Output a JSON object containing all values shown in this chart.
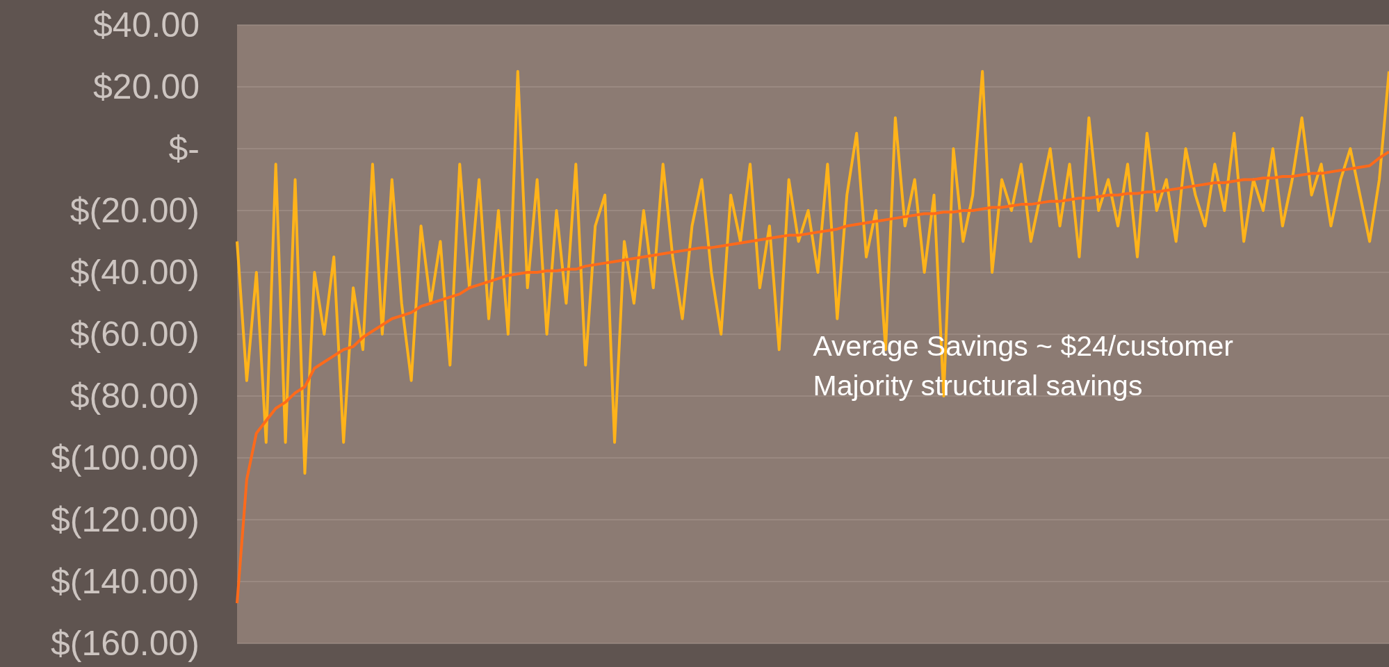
{
  "chart_data": {
    "type": "line",
    "categories": [
      null,
      null,
      null,
      null,
      null,
      null,
      null,
      null,
      null,
      null,
      null,
      null,
      null,
      null,
      null,
      null,
      null,
      null,
      null,
      null,
      null,
      null,
      null,
      null,
      null,
      null,
      null,
      null,
      null,
      null,
      null,
      null,
      null,
      null,
      null,
      null,
      null,
      null,
      null,
      null,
      null,
      null,
      null,
      null,
      null,
      null,
      null,
      null,
      null,
      null,
      null,
      null,
      null,
      null,
      null,
      null,
      null,
      null,
      null,
      null,
      null,
      null,
      null,
      null,
      null,
      null,
      null,
      null,
      null,
      null,
      null,
      null,
      null,
      null,
      null,
      null,
      null,
      null,
      null,
      null,
      null,
      null,
      null,
      null,
      null,
      null,
      null,
      null,
      null,
      null,
      null,
      null,
      null,
      null,
      null,
      null,
      null,
      null,
      null,
      null,
      null,
      null,
      null,
      null,
      null,
      null,
      null,
      null,
      null,
      null,
      null,
      null,
      null,
      null,
      null,
      null,
      null,
      null,
      null,
      null
    ],
    "series": [
      {
        "color": "#ffb31a",
        "values": [
          -30,
          -75,
          -40,
          -95,
          -5,
          -95,
          -10,
          -105,
          -40,
          -60,
          -35,
          -95,
          -45,
          -65,
          -5,
          -60,
          -10,
          -50,
          -75,
          -25,
          -50,
          -30,
          -70,
          -5,
          -45,
          -10,
          -55,
          -20,
          -60,
          25,
          -45,
          -10,
          -60,
          -20,
          -50,
          -5,
          -70,
          -25,
          -15,
          -95,
          -30,
          -50,
          -20,
          -45,
          -5,
          -35,
          -55,
          -25,
          -10,
          -40,
          -60,
          -15,
          -30,
          -5,
          -45,
          -25,
          -65,
          -10,
          -30,
          -20,
          -40,
          -5,
          -55,
          -15,
          5,
          -35,
          -20,
          -65,
          10,
          -25,
          -10,
          -40,
          -15,
          -80,
          0,
          -30,
          -15,
          25,
          -40,
          -10,
          -20,
          -5,
          -30,
          -15,
          0,
          -25,
          -5,
          -35,
          10,
          -20,
          -10,
          -25,
          -5,
          -35,
          5,
          -20,
          -10,
          -30,
          0,
          -15,
          -25,
          -5,
          -20,
          5,
          -30,
          -10,
          -20,
          0,
          -25,
          -10,
          10,
          -15,
          -5,
          -25,
          -10,
          0,
          -15,
          -30,
          -10,
          25
        ]
      },
      {
        "color": "#ff6a1a",
        "values": [
          -147,
          -107,
          -92,
          -88,
          -84,
          -82,
          -79,
          -77,
          -71,
          -69,
          -67,
          -65,
          -64,
          -61,
          -59,
          -57,
          -55,
          -54,
          -53,
          -51,
          -50,
          -49,
          -48,
          -47,
          -45,
          -44,
          -43,
          -42,
          -41,
          -40.5,
          -40,
          -40,
          -39.5,
          -39.5,
          -39,
          -39,
          -38,
          -37.5,
          -37,
          -36.5,
          -36,
          -35.5,
          -35,
          -34.5,
          -34,
          -33.5,
          -33,
          -32.5,
          -32,
          -32,
          -31.5,
          -31,
          -30.5,
          -30,
          -29.5,
          -29,
          -28.5,
          -28,
          -28,
          -27.5,
          -27,
          -26.5,
          -26,
          -25,
          -24.5,
          -24,
          -23.5,
          -23,
          -22.5,
          -22,
          -21.5,
          -21,
          -21,
          -20.5,
          -20.5,
          -20,
          -20,
          -19.5,
          -19,
          -19,
          -18.5,
          -18,
          -18,
          -17.5,
          -17,
          -17,
          -16.5,
          -16,
          -16,
          -15.5,
          -15,
          -15,
          -14.5,
          -14.5,
          -14,
          -14,
          -13.5,
          -13,
          -12.5,
          -12,
          -11.5,
          -11,
          -11,
          -10.5,
          -10,
          -10,
          -9.5,
          -9.5,
          -9,
          -9,
          -8.5,
          -8,
          -8,
          -7.5,
          -7,
          -6.5,
          -6,
          -5.5,
          -3,
          -1
        ]
      }
    ],
    "ylim": [
      -160,
      40
    ],
    "yticks": [
      {
        "value": 40,
        "label": "$40.00"
      },
      {
        "value": 20,
        "label": "$20.00"
      },
      {
        "value": 0,
        "label": "$-"
      },
      {
        "value": -20,
        "label": "$(20.00)"
      },
      {
        "value": -40,
        "label": "$(40.00)"
      },
      {
        "value": -60,
        "label": "$(60.00)"
      },
      {
        "value": -80,
        "label": "$(80.00)"
      },
      {
        "value": -100,
        "label": "$(100.00)"
      },
      {
        "value": -120,
        "label": "$(120.00)"
      },
      {
        "value": -140,
        "label": "$(140.00)"
      },
      {
        "value": -160,
        "label": "$(160.00)"
      }
    ],
    "grid": "y",
    "tick_labels": "y",
    "marker": "none",
    "line_style": "solid",
    "annotations": [
      "Average Savings ~ $24/customer",
      "Majority structural savings"
    ]
  }
}
